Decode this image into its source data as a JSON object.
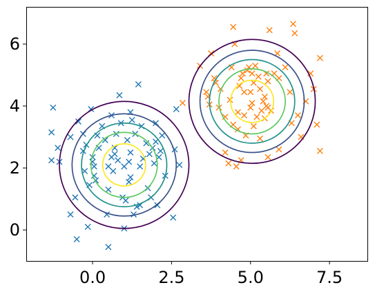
{
  "chart_data": {
    "type": "scatter",
    "title": "",
    "xlabel": "",
    "ylabel": "",
    "xlim": [
      -2.1,
      8.7
    ],
    "ylim": [
      -1.0,
      7.2
    ],
    "grid": false,
    "x_ticks": [
      {
        "value": 0.0,
        "label": "0.0"
      },
      {
        "value": 2.5,
        "label": "2.5"
      },
      {
        "value": 5.0,
        "label": "5.0"
      },
      {
        "value": 7.5,
        "label": "7.5"
      }
    ],
    "y_ticks": [
      {
        "value": 0,
        "label": "0"
      },
      {
        "value": 2,
        "label": "2"
      },
      {
        "value": 4,
        "label": "4"
      },
      {
        "value": 6,
        "label": "6"
      }
    ],
    "series": [
      {
        "color": "#1f77b4",
        "marker": "x",
        "points": [
          [
            -1.3,
            3.15
          ],
          [
            -1.25,
            3.95
          ],
          [
            -1.3,
            2.25
          ],
          [
            -1.1,
            2.65
          ],
          [
            -1.05,
            2.2
          ],
          [
            -0.7,
            3.0
          ],
          [
            -0.7,
            0.5
          ],
          [
            -0.55,
            1.05
          ],
          [
            -0.45,
            3.5
          ],
          [
            -0.3,
            3.1
          ],
          [
            -0.3,
            2.55
          ],
          [
            -0.25,
            1.9
          ],
          [
            -0.2,
            2.75
          ],
          [
            -0.15,
            0.1
          ],
          [
            -0.1,
            1.45
          ],
          [
            -0.05,
            3.9
          ],
          [
            0.0,
            2.35
          ],
          [
            0.0,
            2.2
          ],
          [
            0.05,
            2.05
          ],
          [
            0.05,
            1.75
          ],
          [
            0.1,
            1.6
          ],
          [
            0.15,
            3.05
          ],
          [
            0.2,
            2.65
          ],
          [
            0.3,
            3.35
          ],
          [
            0.4,
            2.9
          ],
          [
            0.45,
            0.5
          ],
          [
            0.5,
            1.3
          ],
          [
            0.5,
            2.05
          ],
          [
            0.6,
            3.7
          ],
          [
            0.6,
            2.35
          ],
          [
            0.65,
            1.9
          ],
          [
            0.7,
            2.65
          ],
          [
            0.7,
            2.45
          ],
          [
            0.75,
            3.1
          ],
          [
            0.8,
            2.25
          ],
          [
            0.85,
            4.35
          ],
          [
            0.9,
            3.45
          ],
          [
            0.95,
            1.05
          ],
          [
            1.0,
            0.05
          ],
          [
            1.0,
            2.05
          ],
          [
            1.05,
            0.95
          ],
          [
            1.1,
            2.9
          ],
          [
            1.15,
            2.2
          ],
          [
            1.15,
            1.55
          ],
          [
            1.2,
            2.5
          ],
          [
            1.2,
            1.7
          ],
          [
            1.2,
            3.8
          ],
          [
            1.25,
            3.55
          ],
          [
            1.3,
            0.5
          ],
          [
            1.35,
            3.1
          ],
          [
            1.4,
            0.75
          ],
          [
            1.45,
            4.7
          ],
          [
            1.5,
            0.8
          ],
          [
            1.5,
            2.05
          ],
          [
            1.55,
            3.35
          ],
          [
            1.6,
            2.3
          ],
          [
            1.7,
            2.8
          ],
          [
            1.75,
            1.35
          ],
          [
            1.8,
            2.45
          ],
          [
            1.85,
            1.05
          ],
          [
            1.9,
            2.65
          ],
          [
            1.95,
            2.15
          ],
          [
            2.0,
            3.45
          ],
          [
            2.0,
            2.85
          ],
          [
            2.05,
            0.8
          ],
          [
            2.1,
            2.35
          ],
          [
            2.15,
            2.55
          ],
          [
            2.2,
            3.05
          ],
          [
            2.3,
            1.75
          ],
          [
            2.55,
            0.4
          ],
          [
            2.6,
            2.6
          ],
          [
            2.65,
            3.9
          ],
          [
            2.75,
            2.1
          ],
          [
            -0.5,
            -0.3
          ],
          [
            0.5,
            -0.55
          ]
        ]
      },
      {
        "color": "#ff7f0e",
        "marker": "x",
        "points": [
          [
            2.85,
            4.1
          ],
          [
            3.4,
            5.3
          ],
          [
            3.6,
            4.45
          ],
          [
            3.65,
            4.3
          ],
          [
            3.7,
            4.05
          ],
          [
            3.75,
            5.7
          ],
          [
            3.85,
            4.9
          ],
          [
            3.9,
            4.75
          ],
          [
            4.0,
            3.95
          ],
          [
            4.05,
            4.55
          ],
          [
            4.2,
            2.5
          ],
          [
            4.2,
            3.65
          ],
          [
            4.3,
            2.15
          ],
          [
            4.35,
            4.2
          ],
          [
            4.4,
            5.25
          ],
          [
            4.45,
            3.4
          ],
          [
            4.45,
            6.55
          ],
          [
            4.5,
            6.0
          ],
          [
            4.55,
            2.05
          ],
          [
            4.6,
            3.8
          ],
          [
            4.6,
            3.25
          ],
          [
            4.65,
            4.65
          ],
          [
            4.7,
            4.9
          ],
          [
            4.7,
            2.25
          ],
          [
            4.75,
            5.05
          ],
          [
            4.8,
            3.7
          ],
          [
            4.8,
            4.45
          ],
          [
            4.85,
            3.05
          ],
          [
            4.9,
            5.15
          ],
          [
            4.95,
            5.25
          ],
          [
            5.0,
            4.45
          ],
          [
            5.0,
            3.95
          ],
          [
            5.05,
            4.1
          ],
          [
            5.05,
            5.05
          ],
          [
            5.1,
            3.35
          ],
          [
            5.1,
            4.75
          ],
          [
            5.15,
            5.3
          ],
          [
            5.2,
            3.65
          ],
          [
            5.25,
            4.95
          ],
          [
            5.3,
            2.95
          ],
          [
            5.3,
            4.55
          ],
          [
            5.35,
            3.85
          ],
          [
            5.4,
            4.15
          ],
          [
            5.45,
            3.6
          ],
          [
            5.45,
            4.3
          ],
          [
            5.5,
            4.0
          ],
          [
            5.5,
            5.05
          ],
          [
            5.55,
            3.95
          ],
          [
            5.55,
            2.35
          ],
          [
            5.55,
            4.8
          ],
          [
            5.6,
            6.45
          ],
          [
            5.65,
            3.85
          ],
          [
            5.75,
            5.05
          ],
          [
            5.85,
            5.7
          ],
          [
            5.9,
            4.9
          ],
          [
            5.9,
            2.6
          ],
          [
            6.1,
            5.25
          ],
          [
            6.25,
            4.45
          ],
          [
            6.3,
            3.45
          ],
          [
            6.35,
            6.65
          ],
          [
            6.4,
            6.35
          ],
          [
            6.5,
            3.7
          ],
          [
            6.6,
            3.0
          ],
          [
            6.75,
            4.15
          ],
          [
            6.9,
            5.05
          ],
          [
            7.0,
            4.55
          ],
          [
            7.1,
            3.4
          ],
          [
            7.2,
            2.55
          ],
          [
            7.2,
            5.55
          ]
        ]
      }
    ],
    "contours": {
      "colormap": "viridis",
      "groups": [
        {
          "center": [
            1.0,
            2.1
          ],
          "levels": [
            {
              "radius": 2.05,
              "color": "#440154"
            },
            {
              "radius": 1.65,
              "color": "#3b528b"
            },
            {
              "radius": 1.35,
              "color": "#21918c"
            },
            {
              "radius": 1.05,
              "color": "#5ec962"
            },
            {
              "radius": 0.68,
              "color": "#fde725"
            }
          ]
        },
        {
          "center": [
            5.05,
            4.15
          ],
          "levels": [
            {
              "radius": 2.0,
              "color": "#440154"
            },
            {
              "radius": 1.65,
              "color": "#3b528b"
            },
            {
              "radius": 1.35,
              "color": "#21918c"
            },
            {
              "radius": 1.05,
              "color": "#5ec962"
            },
            {
              "radius": 0.68,
              "color": "#fde725"
            }
          ]
        }
      ]
    }
  }
}
